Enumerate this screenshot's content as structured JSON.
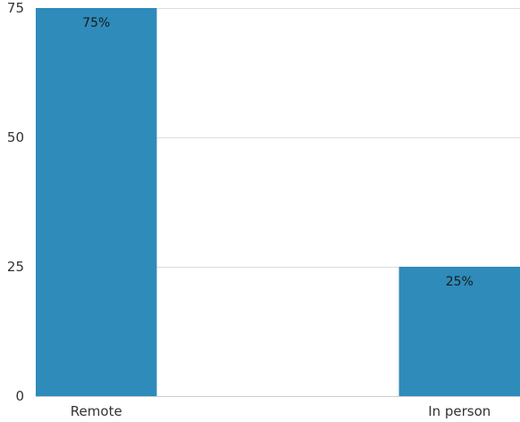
{
  "chart_data": {
    "type": "bar",
    "categories": [
      "Remote",
      "In person"
    ],
    "values": [
      75,
      25
    ],
    "data_labels": [
      "75%",
      "25%"
    ],
    "title": "",
    "xlabel": "",
    "ylabel": "",
    "ylim": [
      0,
      75
    ],
    "yticks": [
      0,
      25,
      50,
      75
    ],
    "ytick_labels": [
      "0",
      "25",
      "50",
      "75"
    ],
    "grid": true,
    "legend": "none",
    "bar_color": "#2e8bba",
    "grid_color": "#dddddd"
  }
}
